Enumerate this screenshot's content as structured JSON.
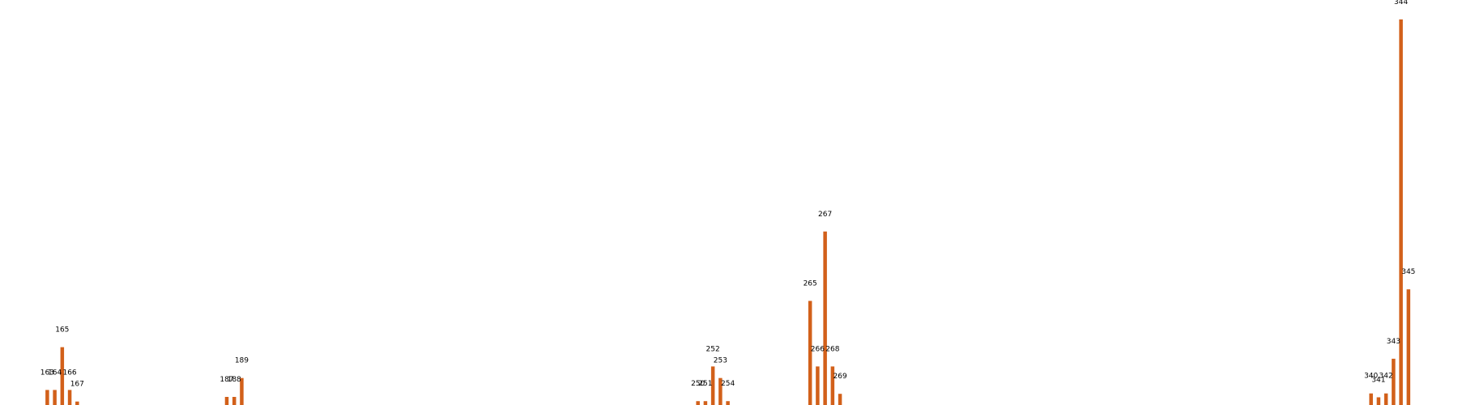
{
  "chart_data": {
    "type": "bar",
    "title": "",
    "xlabel": "",
    "ylabel": "",
    "ylim": [
      0,
      100
    ],
    "grid": false,
    "legend": "none",
    "bar_color": "#D2601A",
    "categories": [
      "163",
      "164",
      "165",
      "166",
      "167",
      "187",
      "188",
      "189",
      "250",
      "251",
      "252",
      "253",
      "254",
      "265",
      "266",
      "267",
      "268",
      "269",
      "340",
      "341",
      "342",
      "343",
      "344",
      "345"
    ],
    "x": [
      163,
      164,
      165,
      166,
      167,
      187,
      188,
      189,
      250,
      251,
      252,
      253,
      254,
      265,
      266,
      267,
      268,
      269,
      340,
      341,
      342,
      343,
      344,
      345
    ],
    "values": [
      3.9,
      3.9,
      15.0,
      3.9,
      0.9,
      2.1,
      2.1,
      7.0,
      1.0,
      1.0,
      10.0,
      7.0,
      1.0,
      27.0,
      10.0,
      45.0,
      10.0,
      2.9,
      3.0,
      2.0,
      3.0,
      12.0,
      100.0,
      30.0
    ]
  }
}
